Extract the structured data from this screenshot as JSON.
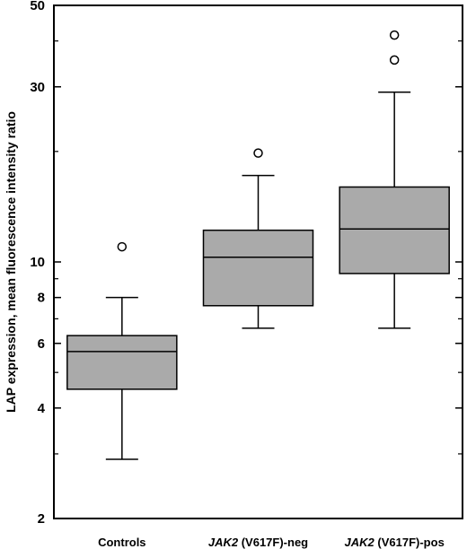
{
  "chart_data": {
    "type": "box",
    "ylabel": "LAP expression, mean fluorescence intensity ratio",
    "xlabel": "",
    "yscale": "log",
    "ylim": [
      2,
      50
    ],
    "yticks": [
      2,
      4,
      6,
      8,
      10,
      30,
      50
    ],
    "ytick_labels": [
      "2",
      "4",
      "6",
      "8",
      "10",
      "30",
      "50"
    ],
    "minor_yticks": [
      3,
      5,
      7,
      9,
      20,
      40
    ],
    "grid": false,
    "box_color": "#aaaaaa",
    "categories": [
      {
        "parts": [
          {
            "text": "Controls",
            "italic": false
          }
        ]
      },
      {
        "parts": [
          {
            "text": "JAK2",
            "italic": true
          },
          {
            "text": " (V617F)-neg",
            "italic": false
          }
        ]
      },
      {
        "parts": [
          {
            "text": "JAK2",
            "italic": true
          },
          {
            "text": " (V617F)-pos",
            "italic": false
          }
        ]
      }
    ],
    "series": [
      {
        "whisker_low": 2.9,
        "q1": 4.5,
        "median": 5.7,
        "q3": 6.3,
        "whisker_high": 8.0,
        "outliers": [
          11.0
        ]
      },
      {
        "whisker_low": 6.6,
        "q1": 7.6,
        "median": 10.3,
        "q3": 12.2,
        "whisker_high": 17.2,
        "outliers": [
          19.8
        ]
      },
      {
        "whisker_low": 6.6,
        "q1": 9.3,
        "median": 12.3,
        "q3": 16.0,
        "whisker_high": 29.0,
        "outliers": [
          35.5,
          41.5
        ]
      }
    ]
  }
}
